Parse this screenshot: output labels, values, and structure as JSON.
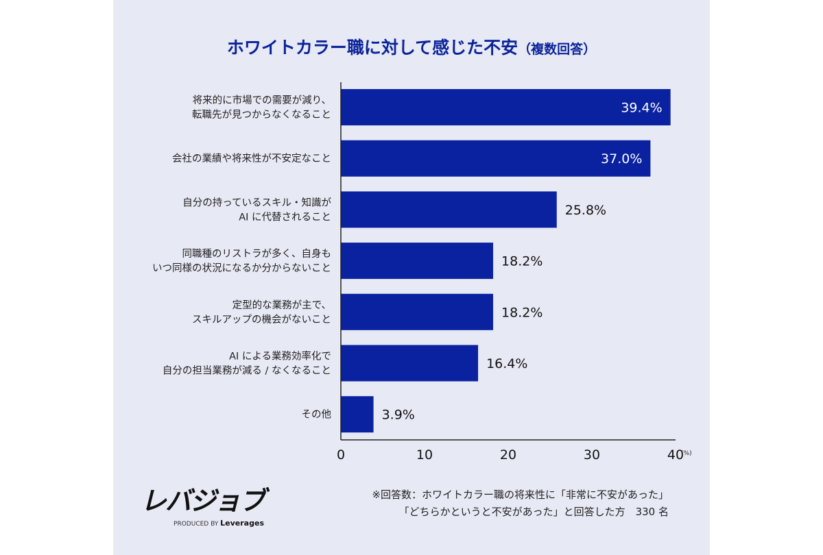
{
  "chart_data": {
    "type": "bar",
    "orientation": "horizontal",
    "title": "ホワイトカラー職に対して感じた不安",
    "subtitle": "（複数回答）",
    "categories": [
      [
        "将来的に市場での需要が減り、",
        "転職先が見つからなくなること"
      ],
      [
        "会社の業績や将来性が不安定なこと"
      ],
      [
        "自分の持っているスキル・知識が",
        "AI に代替されること"
      ],
      [
        "同職種のリストラが多く、自身も",
        "いつ同様の状況になるか分からないこと"
      ],
      [
        "定型的な業務が主で、",
        "スキルアップの機会がないこと"
      ],
      [
        "AI による業務効率化で",
        "自分の担当業務が減る / なくなること"
      ],
      [
        "その他"
      ]
    ],
    "values": [
      39.4,
      37.0,
      25.8,
      18.2,
      18.2,
      16.4,
      3.9
    ],
    "value_labels": [
      "39.4%",
      "37.0%",
      "25.8%",
      "18.2%",
      "18.2%",
      "16.4%",
      "3.9%"
    ],
    "xlim": [
      0,
      40
    ],
    "xticks": [
      "0",
      "10",
      "20",
      "30",
      "40"
    ],
    "xunit": "(%)",
    "grid": false,
    "bar_color": "#0a22a0",
    "background": "#e7e9f4"
  },
  "logo": {
    "mark": "レバジョブ",
    "produced_by": "PRODUCED BY",
    "brand": "Leverages"
  },
  "note": {
    "line1": "※回答数：ホワイトカラー職の将来性に「非常に不安があった」",
    "line2": "「どちらかというと不安があった」と回答した方　330 名"
  }
}
